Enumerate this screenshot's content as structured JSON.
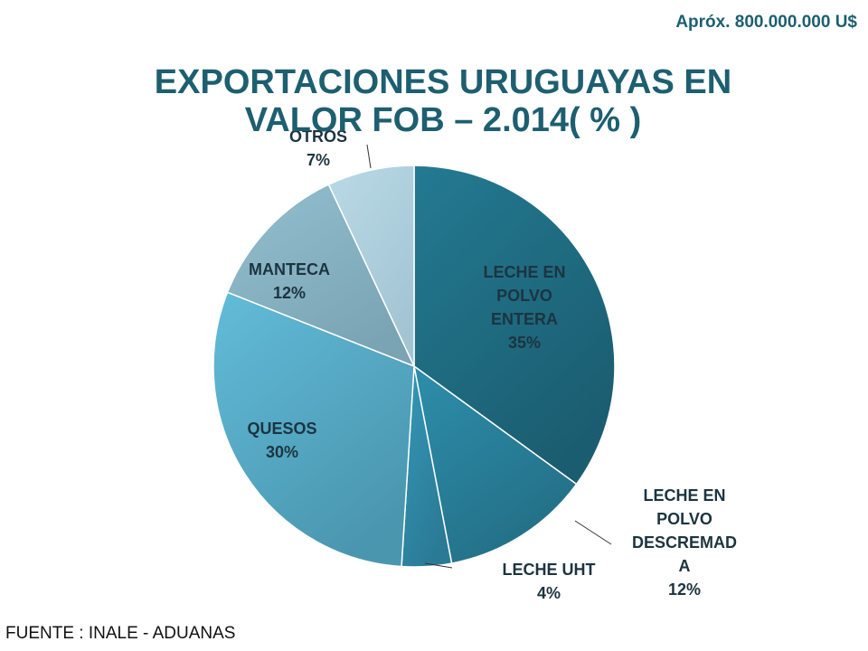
{
  "note": "Apróx. 800.000.000 U$",
  "title_line1": "EXPORTACIONES URUGUAYAS EN",
  "title_line2": "VALOR FOB – 2.014( % )",
  "source": "FUENTE : INALE - ADUANAS",
  "chart_data": {
    "type": "pie",
    "title": "EXPORTACIONES URUGUAYAS EN VALOR FOB – 2.014( % )",
    "slices": [
      {
        "label_lines": [
          "LECHE EN",
          "POLVO",
          "ENTERA"
        ],
        "value_label": "35%",
        "value": 35,
        "color": "#237a92",
        "color_dark": "#1b5d70"
      },
      {
        "label_lines": [
          "LECHE EN",
          "POLVO",
          "DESCREMAD",
          "A"
        ],
        "value_label": "12%",
        "value": 12,
        "color": "#2d8eab",
        "color_dark": "#236f86"
      },
      {
        "label_lines": [
          "LECHE UHT"
        ],
        "value_label": "4%",
        "value": 4,
        "color": "#3598b8",
        "color_dark": "#2a7a95"
      },
      {
        "label_lines": [
          "QUESOS"
        ],
        "value_label": "30%",
        "value": 30,
        "color": "#62bcd9",
        "color_dark": "#4a96af"
      },
      {
        "label_lines": [
          "MANTECA"
        ],
        "value_label": "12%",
        "value": 12,
        "color": "#92bfd0",
        "color_dark": "#7aa4b3"
      },
      {
        "label_lines": [
          "OTROS"
        ],
        "value_label": "7%",
        "value": 7,
        "color": "#b9d9e6",
        "color_dark": "#a3c5d3"
      }
    ],
    "label_color": "#1c3440"
  }
}
